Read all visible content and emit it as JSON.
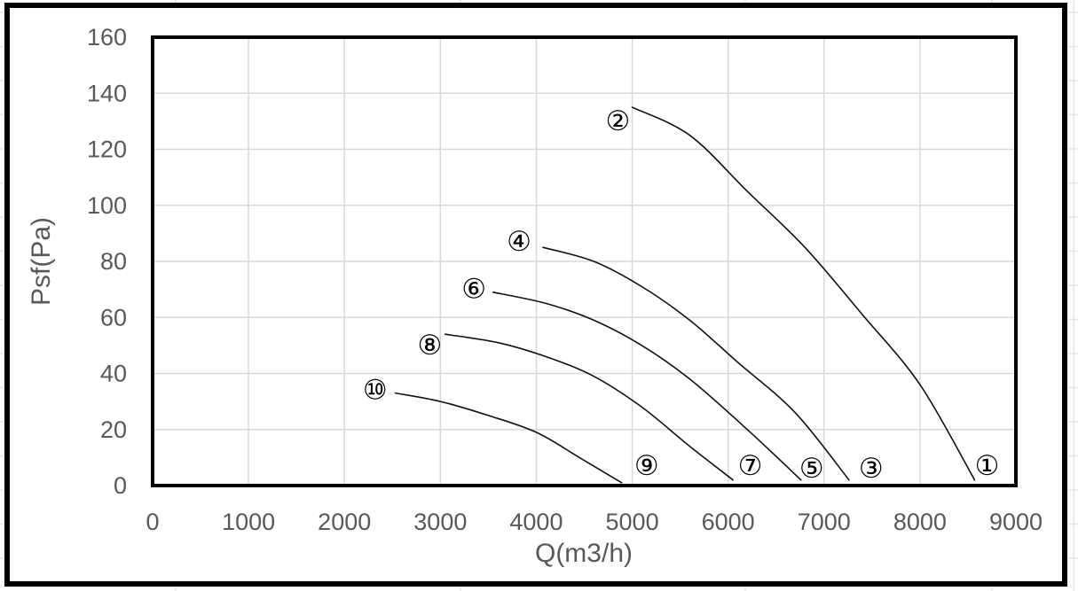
{
  "chart_data": {
    "type": "line",
    "title": "",
    "xlabel": "Q(m3/h)",
    "ylabel": "Psf(Pa)",
    "xlim": [
      0,
      9000
    ],
    "ylim": [
      0,
      160
    ],
    "x_ticks": [
      0,
      1000,
      2000,
      3000,
      4000,
      5000,
      6000,
      7000,
      8000,
      9000
    ],
    "y_ticks": [
      0,
      20,
      40,
      60,
      80,
      100,
      120,
      140,
      160
    ],
    "grid": true,
    "legend": "none",
    "series": [
      {
        "name": "curve-2-1",
        "start_label": "②",
        "end_label": "①",
        "points": [
          [
            5000,
            135
          ],
          [
            5600,
            125
          ],
          [
            6200,
            105
          ],
          [
            6800,
            85
          ],
          [
            7400,
            61
          ],
          [
            8000,
            36
          ],
          [
            8570,
            2
          ]
        ]
      },
      {
        "name": "curve-4-3",
        "start_label": "④",
        "end_label": "③",
        "points": [
          [
            4070,
            85
          ],
          [
            4600,
            80
          ],
          [
            5100,
            71
          ],
          [
            5600,
            59
          ],
          [
            6100,
            44
          ],
          [
            6700,
            26
          ],
          [
            7260,
            2
          ]
        ]
      },
      {
        "name": "curve-6-5",
        "start_label": "⑥",
        "end_label": "⑤",
        "points": [
          [
            3550,
            69
          ],
          [
            4100,
            65
          ],
          [
            4600,
            59
          ],
          [
            5100,
            50
          ],
          [
            5600,
            38
          ],
          [
            6200,
            20
          ],
          [
            6760,
            2
          ]
        ]
      },
      {
        "name": "curve-8-7",
        "start_label": "⑧",
        "end_label": "⑦",
        "points": [
          [
            3050,
            54
          ],
          [
            3600,
            51
          ],
          [
            4100,
            46
          ],
          [
            4600,
            39
          ],
          [
            5100,
            28
          ],
          [
            5600,
            14
          ],
          [
            6050,
            2
          ]
        ]
      },
      {
        "name": "curve-10-9",
        "start_label": "⑩",
        "end_label": "⑨",
        "points": [
          [
            2530,
            33
          ],
          [
            3000,
            30
          ],
          [
            3500,
            25
          ],
          [
            4000,
            19
          ],
          [
            4450,
            10
          ],
          [
            4890,
            1
          ]
        ]
      }
    ],
    "point_labels": [
      {
        "text": "②",
        "q": 4850,
        "p": 130
      },
      {
        "text": "④",
        "q": 3820,
        "p": 87
      },
      {
        "text": "⑥",
        "q": 3350,
        "p": 70
      },
      {
        "text": "⑧",
        "q": 2890,
        "p": 50
      },
      {
        "text": "⑩",
        "q": 2320,
        "p": 34
      },
      {
        "text": "⑨",
        "q": 5150,
        "p": 7
      },
      {
        "text": "⑦",
        "q": 6230,
        "p": 7
      },
      {
        "text": "⑤",
        "q": 6870,
        "p": 6
      },
      {
        "text": "③",
        "q": 7490,
        "p": 6
      },
      {
        "text": "①",
        "q": 8700,
        "p": 7
      }
    ]
  },
  "colors": {
    "background": "#ffffff",
    "curve": "#111111",
    "plot_border": "#000000",
    "outer_border": "#000000",
    "gridline": "#d9d9d9",
    "excel_gridline": "#e7e7e7",
    "axis_text": "#595959",
    "label_text": "#000000"
  }
}
